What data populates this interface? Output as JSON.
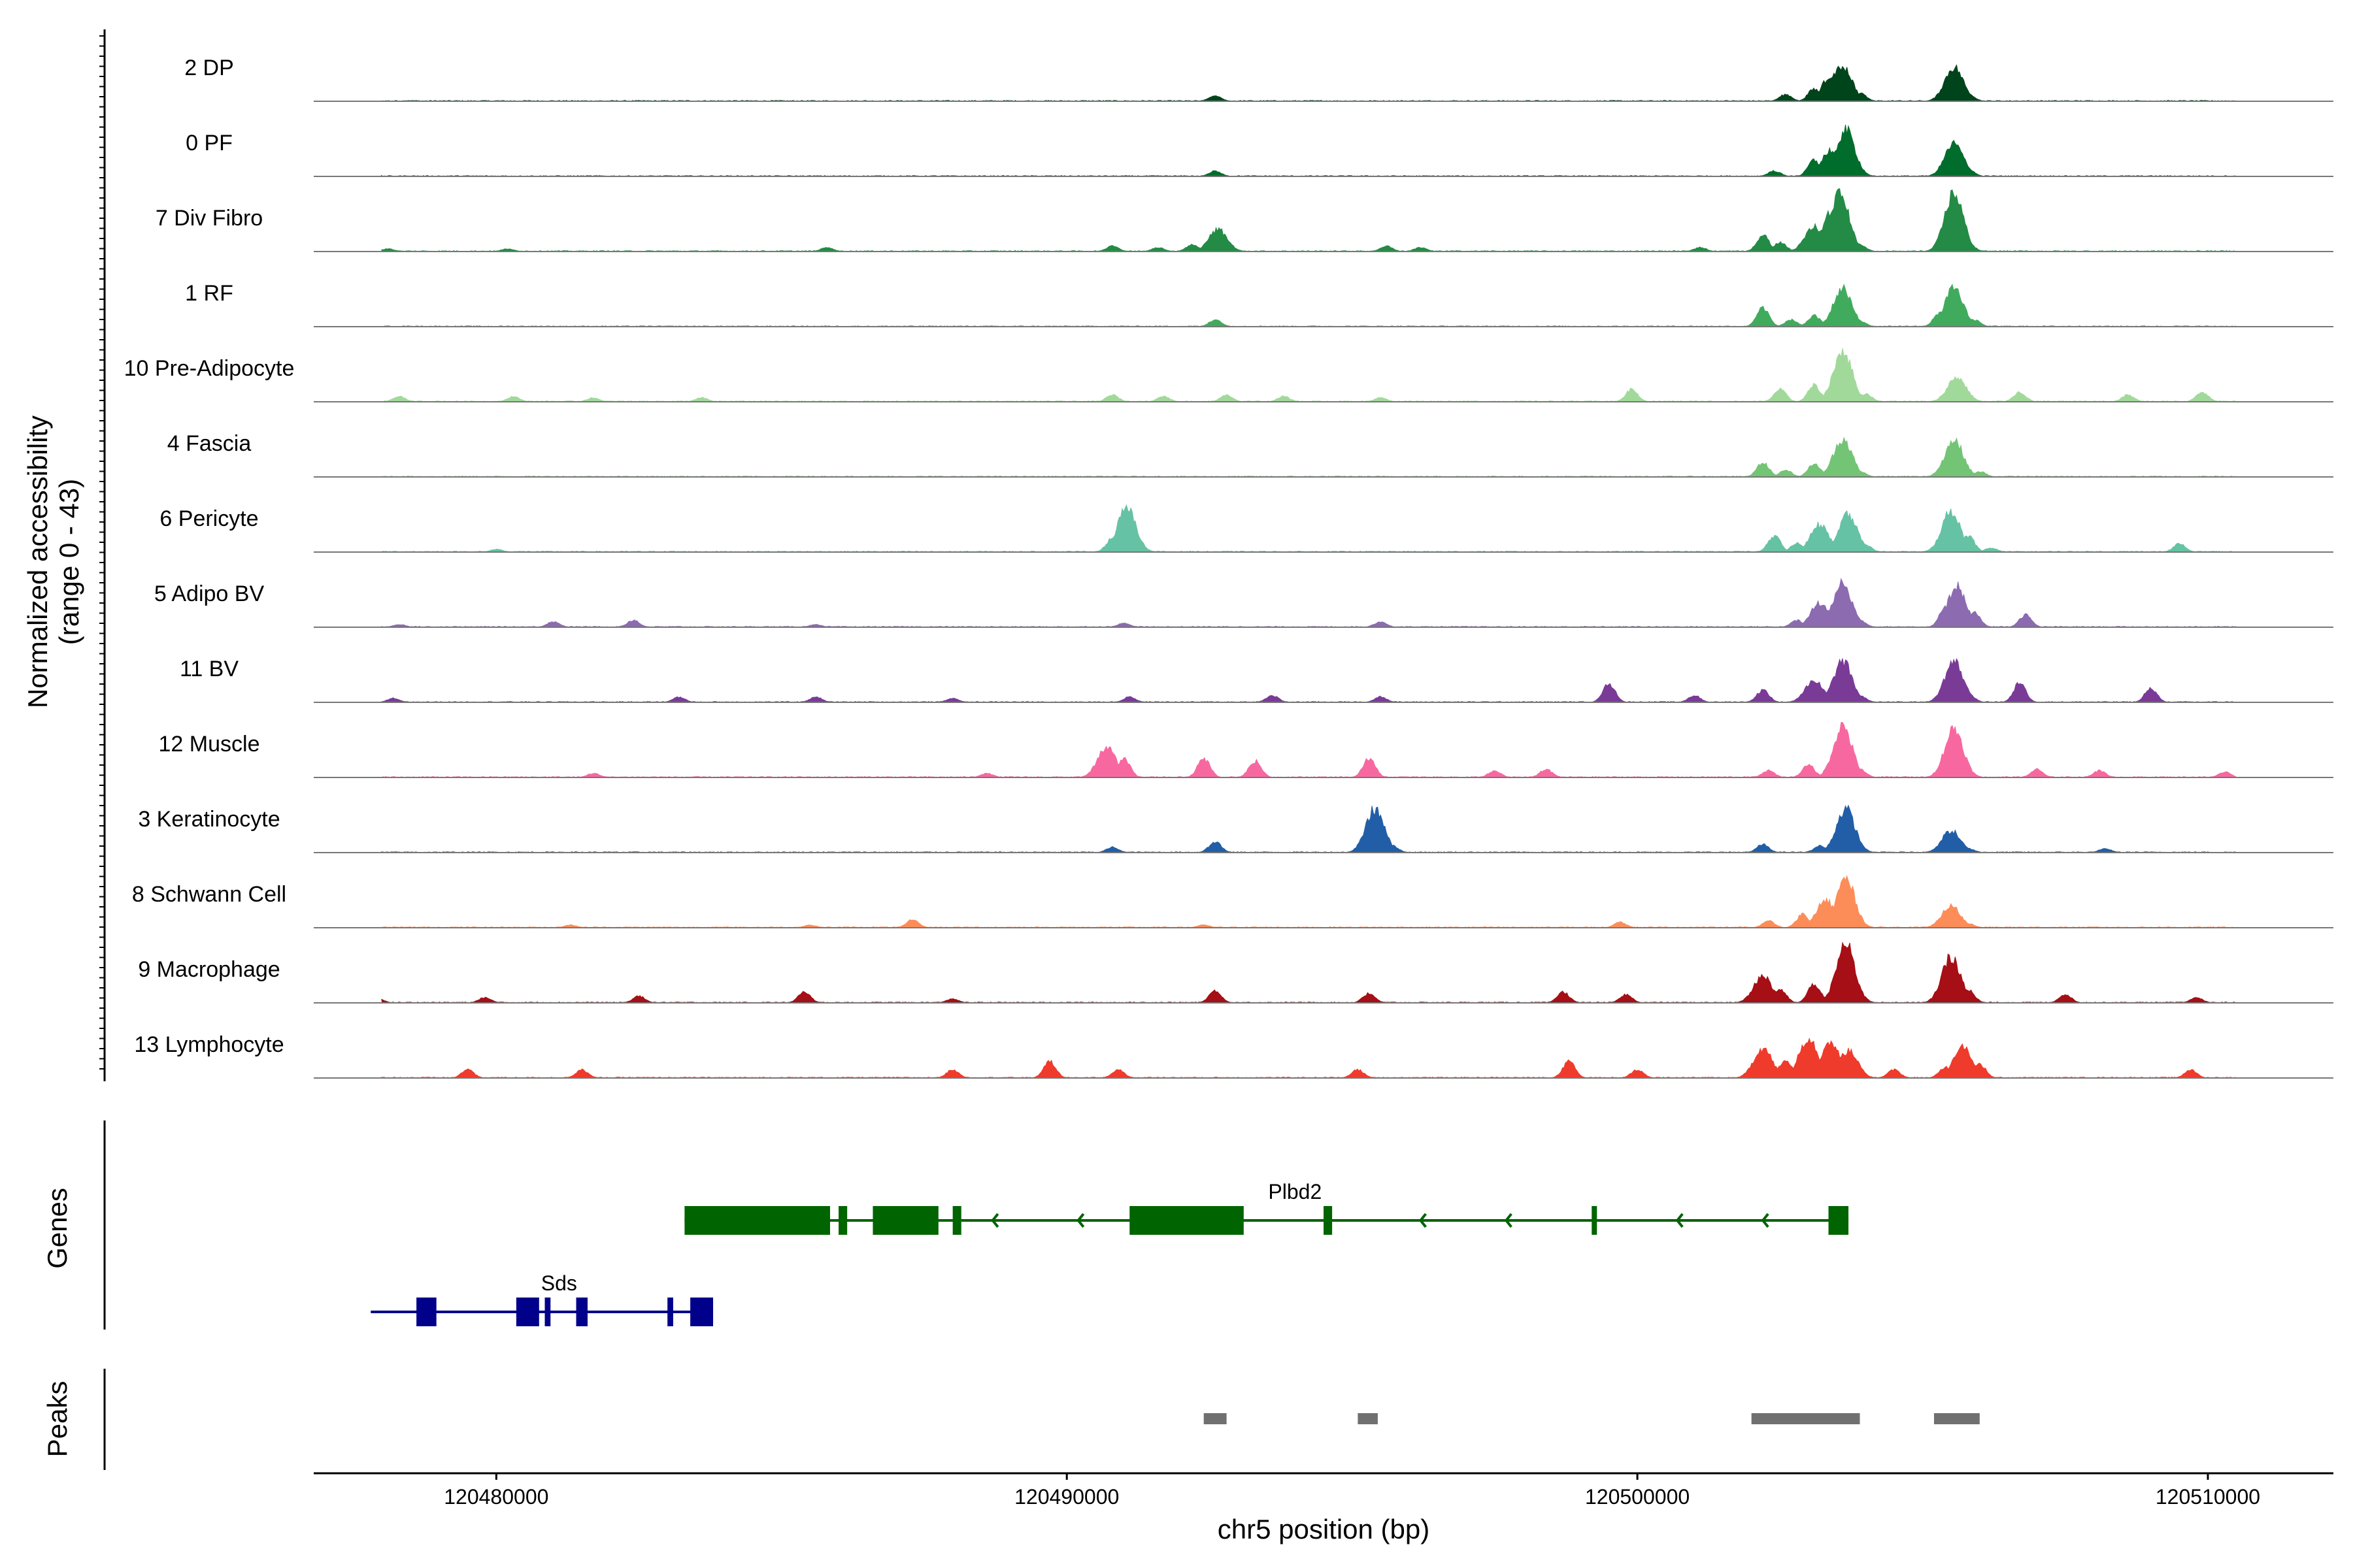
{
  "chart_data": {
    "type": "area",
    "title": "",
    "ylabel": "Normalized accessibility",
    "ylabel_range": "(range 0 - 43)",
    "xlabel": "chr5 position (bp)",
    "xlim": [
      120476800,
      120512200
    ],
    "ylim": [
      0,
      43
    ],
    "x_ticks": [
      120480000,
      120490000,
      120500000,
      120510000
    ],
    "x_tick_labels": [
      "120480000",
      "120490000",
      "120500000",
      "120510000"
    ],
    "panel_labels": {
      "genes": "Genes",
      "peaks": "Peaks"
    },
    "series": [
      {
        "name": "2 DP",
        "color": "#00441b",
        "points": [
          [
            120478500,
            0.5
          ],
          [
            120492600,
            4
          ],
          [
            120502600,
            5
          ],
          [
            120503100,
            9
          ],
          [
            120503400,
            19
          ],
          [
            120503600,
            26
          ],
          [
            120503900,
            6
          ],
          [
            120505400,
            8
          ],
          [
            120505550,
            25
          ],
          [
            120505800,
            5
          ],
          [
            120510500,
            0.3
          ]
        ]
      },
      {
        "name": "0 PF",
        "color": "#006d2c",
        "points": [
          [
            120478500,
            0.3
          ],
          [
            120492600,
            4
          ],
          [
            120502400,
            4
          ],
          [
            120503100,
            12
          ],
          [
            120503400,
            20
          ],
          [
            120503650,
            34
          ],
          [
            120503900,
            4
          ],
          [
            120505400,
            6
          ],
          [
            120505550,
            24
          ],
          [
            120505800,
            5
          ],
          [
            120510500,
            0.3
          ]
        ]
      },
      {
        "name": "7 Div Fibro",
        "color": "#238b45",
        "points": [
          [
            120478100,
            2
          ],
          [
            120480200,
            2
          ],
          [
            120485800,
            3
          ],
          [
            120490800,
            4
          ],
          [
            120491600,
            3
          ],
          [
            120492200,
            5
          ],
          [
            120492650,
            16
          ],
          [
            120495600,
            4
          ],
          [
            120496200,
            3
          ],
          [
            120501100,
            3
          ],
          [
            120502200,
            12
          ],
          [
            120502500,
            7
          ],
          [
            120503100,
            18
          ],
          [
            120503400,
            30
          ],
          [
            120503550,
            42
          ],
          [
            120503900,
            5
          ],
          [
            120505400,
            14
          ],
          [
            120505550,
            43
          ],
          [
            120505800,
            6
          ]
        ]
      },
      {
        "name": "1 RF",
        "color": "#41ab5d",
        "points": [
          [
            120478500,
            0.3
          ],
          [
            120492600,
            5
          ],
          [
            120502200,
            14
          ],
          [
            120502700,
            5
          ],
          [
            120503100,
            8
          ],
          [
            120503600,
            28
          ],
          [
            120503900,
            4
          ],
          [
            120505300,
            10
          ],
          [
            120505550,
            28
          ],
          [
            120505900,
            5
          ]
        ]
      },
      {
        "name": "10 Pre-Adipocyte",
        "color": "#a1d99b",
        "points": [
          [
            120478300,
            4
          ],
          [
            120480300,
            4
          ],
          [
            120481700,
            3
          ],
          [
            120483600,
            3
          ],
          [
            120490800,
            5
          ],
          [
            120491700,
            4
          ],
          [
            120492800,
            5
          ],
          [
            120493800,
            4
          ],
          [
            120495500,
            3
          ],
          [
            120499900,
            9
          ],
          [
            120502500,
            9
          ],
          [
            120503100,
            12
          ],
          [
            120503600,
            38
          ],
          [
            120504000,
            6
          ],
          [
            120505600,
            18
          ],
          [
            120506700,
            7
          ],
          [
            120508600,
            5
          ],
          [
            120509900,
            7
          ]
        ]
      },
      {
        "name": "4 Fascia",
        "color": "#74c476",
        "points": [
          [
            120478500,
            0.3
          ],
          [
            120502200,
            11
          ],
          [
            120502600,
            5
          ],
          [
            120503100,
            10
          ],
          [
            120503600,
            28
          ],
          [
            120503900,
            4
          ],
          [
            120505400,
            11
          ],
          [
            120505550,
            27
          ],
          [
            120506000,
            4
          ]
        ]
      },
      {
        "name": "6 Pericyte",
        "color": "#66c2a4",
        "points": [
          [
            120478500,
            0.3
          ],
          [
            120480000,
            2
          ],
          [
            120490800,
            10
          ],
          [
            120491050,
            32
          ],
          [
            120491300,
            3
          ],
          [
            120502400,
            12
          ],
          [
            120502800,
            7
          ],
          [
            120503200,
            20
          ],
          [
            120503700,
            28
          ],
          [
            120504000,
            5
          ],
          [
            120505500,
            30
          ],
          [
            120505800,
            12
          ],
          [
            120506200,
            3
          ],
          [
            120509500,
            6
          ]
        ]
      },
      {
        "name": "5 Adipo BV",
        "color": "#8c6bb1",
        "points": [
          [
            120478300,
            2
          ],
          [
            120481000,
            4
          ],
          [
            120482400,
            5
          ],
          [
            120485600,
            2
          ],
          [
            120491000,
            3
          ],
          [
            120495500,
            4
          ],
          [
            120502800,
            5
          ],
          [
            120503200,
            18
          ],
          [
            120503600,
            32
          ],
          [
            120503900,
            5
          ],
          [
            120505400,
            14
          ],
          [
            120505600,
            30
          ],
          [
            120505900,
            11
          ],
          [
            120506800,
            9
          ]
        ]
      },
      {
        "name": "11 BV",
        "color": "#7a3b97",
        "points": [
          [
            120478200,
            3
          ],
          [
            120483200,
            4
          ],
          [
            120485600,
            4
          ],
          [
            120488000,
            3
          ],
          [
            120491100,
            4
          ],
          [
            120493600,
            5
          ],
          [
            120495500,
            4
          ],
          [
            120499500,
            14
          ],
          [
            120501000,
            5
          ],
          [
            120502200,
            9
          ],
          [
            120503100,
            16
          ],
          [
            120503600,
            30
          ],
          [
            120503900,
            5
          ],
          [
            120505550,
            30
          ],
          [
            120505800,
            6
          ],
          [
            120506700,
            14
          ],
          [
            120509000,
            10
          ]
        ]
      },
      {
        "name": "12 Muscle",
        "color": "#f768a1",
        "points": [
          [
            120481700,
            3
          ],
          [
            120488600,
            3
          ],
          [
            120490700,
            22
          ],
          [
            120491000,
            14
          ],
          [
            120492400,
            14
          ],
          [
            120493300,
            12
          ],
          [
            120495300,
            14
          ],
          [
            120497500,
            5
          ],
          [
            120498400,
            6
          ],
          [
            120502300,
            5
          ],
          [
            120503000,
            9
          ],
          [
            120503600,
            38
          ],
          [
            120503900,
            6
          ],
          [
            120505550,
            36
          ],
          [
            120505800,
            4
          ],
          [
            120507000,
            6
          ],
          [
            120508100,
            5
          ],
          [
            120510300,
            4
          ]
        ]
      },
      {
        "name": "3 Keratinocyte",
        "color": "#225ea8",
        "points": [
          [
            120478500,
            0.3
          ],
          [
            120490800,
            4
          ],
          [
            120492600,
            8
          ],
          [
            120495400,
            32
          ],
          [
            120495700,
            5
          ],
          [
            120502200,
            6
          ],
          [
            120503200,
            5
          ],
          [
            120503650,
            32
          ],
          [
            120503900,
            4
          ],
          [
            120505500,
            16
          ],
          [
            120505800,
            3
          ],
          [
            120508200,
            3
          ]
        ]
      },
      {
        "name": "8 Schwann Cell",
        "color": "#fc8d59",
        "points": [
          [
            120481300,
            2
          ],
          [
            120485500,
            2
          ],
          [
            120487300,
            6
          ],
          [
            120492400,
            2
          ],
          [
            120499700,
            4
          ],
          [
            120502300,
            5
          ],
          [
            120502900,
            10
          ],
          [
            120503300,
            20
          ],
          [
            120503650,
            36
          ],
          [
            120503900,
            4
          ],
          [
            120505500,
            16
          ],
          [
            120505800,
            3
          ]
        ]
      },
      {
        "name": "9 Macrophage",
        "color": "#a50f15",
        "points": [
          [
            120477900,
            4
          ],
          [
            120479800,
            4
          ],
          [
            120482500,
            5
          ],
          [
            120485400,
            8
          ],
          [
            120488000,
            3
          ],
          [
            120492600,
            9
          ],
          [
            120495300,
            7
          ],
          [
            120498700,
            8
          ],
          [
            120499800,
            6
          ],
          [
            120502200,
            20
          ],
          [
            120502500,
            10
          ],
          [
            120503100,
            14
          ],
          [
            120503650,
            43
          ],
          [
            120503900,
            6
          ],
          [
            120505500,
            34
          ],
          [
            120505800,
            10
          ],
          [
            120507500,
            6
          ],
          [
            120509800,
            4
          ]
        ]
      },
      {
        "name": "13 Lymphocyte",
        "color": "#ef3b2c",
        "points": [
          [
            120479500,
            6
          ],
          [
            120481500,
            6
          ],
          [
            120488000,
            6
          ],
          [
            120489700,
            12
          ],
          [
            120490900,
            6
          ],
          [
            120495100,
            6
          ],
          [
            120498800,
            12
          ],
          [
            120500000,
            6
          ],
          [
            120502200,
            22
          ],
          [
            120502600,
            14
          ],
          [
            120503000,
            30
          ],
          [
            120503400,
            26
          ],
          [
            120503700,
            20
          ],
          [
            120504500,
            6
          ],
          [
            120505400,
            8
          ],
          [
            120505700,
            24
          ],
          [
            120506000,
            10
          ],
          [
            120509700,
            6
          ]
        ]
      }
    ],
    "genes": [
      {
        "name": "Plbd2",
        "strand": "-",
        "color": "#006400",
        "start": 120483300,
        "end": 120503700,
        "exons": [
          [
            120483300,
            120485850
          ],
          [
            120486000,
            120486150
          ],
          [
            120486600,
            120487750
          ],
          [
            120488000,
            120488150
          ],
          [
            120491100,
            120493100
          ],
          [
            120494500,
            120494650
          ],
          [
            120499200,
            120499280
          ],
          [
            120503350,
            120503700
          ]
        ]
      },
      {
        "name": "Sds",
        "strand": "+",
        "color": "#00008b",
        "start": 120477800,
        "end": 120483800,
        "exons": [
          [
            120478600,
            120478950
          ],
          [
            120480350,
            120480750
          ],
          [
            120480850,
            120480950
          ],
          [
            120481400,
            120481600
          ],
          [
            120483000,
            120483100
          ],
          [
            120483400,
            120483800
          ]
        ]
      }
    ],
    "peaks": [
      {
        "start": 120492400,
        "end": 120492800
      },
      {
        "start": 120495100,
        "end": 120495450
      },
      {
        "start": 120502000,
        "end": 120503900
      },
      {
        "start": 120505200,
        "end": 120506000
      }
    ]
  }
}
